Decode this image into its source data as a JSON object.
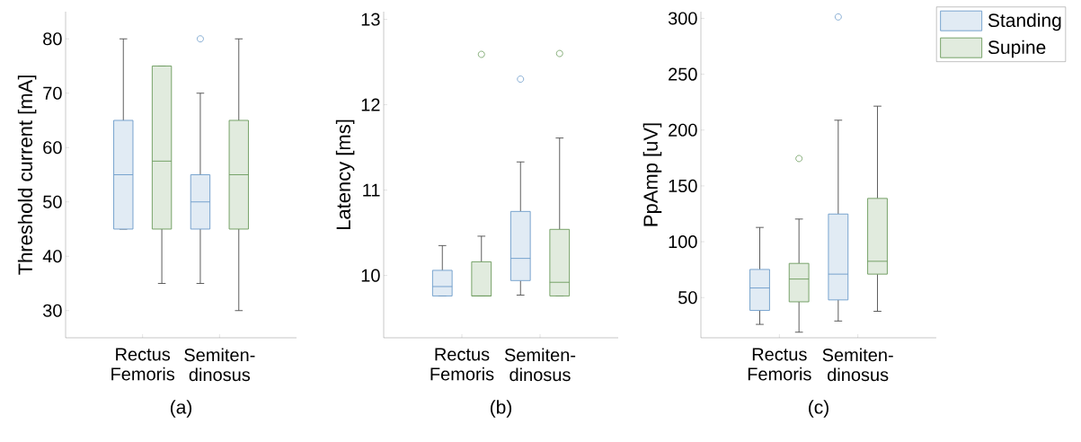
{
  "chart_data": [
    {
      "type": "box",
      "categories": [
        "Rectus Femoris",
        "Semiten-dinosus"
      ],
      "ylabel": "Threshold current [mA]",
      "ylim": [
        25,
        85
      ],
      "yticks": [
        30,
        40,
        50,
        60,
        70,
        80
      ],
      "annotations": [
        "(a)"
      ],
      "series": [
        {
          "color": "#6b9bc9",
          "boxes": [
            {
              "low": 45,
              "q1": 45,
              "median": 55,
              "q3": 65,
              "high": 80
            },
            {
              "low": 35,
              "q1": 45,
              "median": 50,
              "q3": 55,
              "high": 70,
              "outliers": [
                80
              ]
            }
          ]
        },
        {
          "color": "#6a9a5a",
          "boxes": [
            {
              "low": 35,
              "q1": 45,
              "median": 57.5,
              "q3": 75,
              "high": 75
            },
            {
              "low": 30,
              "q1": 45,
              "median": 55,
              "q3": 65,
              "high": 80
            }
          ]
        }
      ]
    },
    {
      "type": "box",
      "categories": [
        "Rectus Femoris",
        "Semiten-dinosus"
      ],
      "ylabel": "Latency [ms]",
      "ylim": [
        9.27,
        13.09
      ],
      "yticks": [
        10,
        11,
        12,
        13
      ],
      "annotations": [
        "(b)"
      ],
      "series": [
        {
          "color": "#6b9bc9",
          "boxes": [
            {
              "low": 9.76,
              "q1": 9.76,
              "median": 9.87,
              "q3": 10.06,
              "high": 10.35
            },
            {
              "low": 9.77,
              "q1": 9.94,
              "median": 10.2,
              "q3": 10.75,
              "high": 11.33,
              "outliers": [
                12.3
              ]
            }
          ]
        },
        {
          "color": "#6a9a5a",
          "boxes": [
            {
              "low": 9.76,
              "q1": 9.76,
              "median": 9.76,
              "q3": 10.16,
              "high": 10.46,
              "outliers": [
                12.59
              ]
            },
            {
              "low": 9.76,
              "q1": 9.76,
              "median": 9.92,
              "q3": 10.54,
              "high": 11.61,
              "outliers": [
                12.6
              ]
            }
          ]
        }
      ]
    },
    {
      "type": "box",
      "categories": [
        "Rectus Femoris",
        "Semiten-dinosus"
      ],
      "ylabel": "PpAmp [uV]",
      "ylim": [
        14,
        306
      ],
      "yticks": [
        50,
        100,
        150,
        200,
        250,
        300
      ],
      "annotations": [
        "(c)"
      ],
      "legend": "top right",
      "series": [
        {
          "name": "Standing",
          "color": "#6b9bc9",
          "boxes": [
            {
              "low": 26,
              "q1": 38.5,
              "median": 58.6,
              "q3": 75.2,
              "high": 112.8
            },
            {
              "low": 29,
              "q1": 47.9,
              "median": 71,
              "q3": 124.8,
              "high": 208.8,
              "outliers": [
                301.3
              ]
            }
          ]
        },
        {
          "name": "Supine",
          "color": "#6a9a5a",
          "boxes": [
            {
              "low": 19,
              "q1": 46.2,
              "median": 66.6,
              "q3": 80.6,
              "high": 120.3,
              "outliers": [
                174.5
              ]
            },
            {
              "low": 37.7,
              "q1": 71,
              "median": 82.5,
              "q3": 138.8,
              "high": 221.4
            }
          ]
        }
      ]
    }
  ]
}
